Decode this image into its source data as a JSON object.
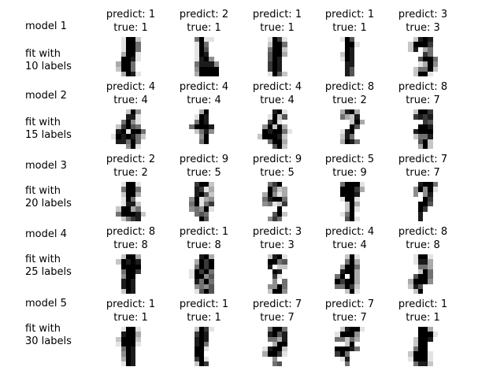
{
  "rows": [
    {
      "model_label": "model 1",
      "fit_line1": "fit with",
      "fit_line2": "10 labels",
      "panels": [
        {
          "predict": "predict: 1",
          "true": "true: 1",
          "pixels": [
            "00199200",
            "00199500",
            "00199500",
            "00399100",
            "00998100",
            "03995000",
            "02995000",
            "00398100"
          ]
        },
        {
          "predict": "predict: 2",
          "true": "true: 1",
          "pixels": [
            "00591100",
            "00195000",
            "00196000",
            "00198000",
            "00189400",
            "00588840",
            "00499990",
            "00399990"
          ]
        },
        {
          "predict": "predict: 1",
          "true": "true: 1",
          "pixels": [
            "00197100",
            "00299500",
            "00599200",
            "00699300",
            "00698000",
            "00798000",
            "00798000",
            "00196200"
          ]
        },
        {
          "predict": "predict: 1",
          "true": "true: 1",
          "pixels": [
            "00196000",
            "00099100",
            "00098000",
            "00298000",
            "00198000",
            "00088000",
            "00086000",
            "00086000"
          ]
        },
        {
          "predict": "predict: 3",
          "true": "true: 3",
          "pixels": [
            "00289800",
            "02999700",
            "02803500",
            "00007500",
            "00069950",
            "00013940",
            "00255920",
            "00299100"
          ]
        }
      ]
    },
    {
      "model_label": "model 2",
      "fit_line1": "fit with",
      "fit_line2": "15 labels",
      "panels": [
        {
          "predict": "predict: 4",
          "true": "true: 4",
          "pixels": [
            "00029400",
            "00088100",
            "00594100",
            "02796500",
            "08919950",
            "19898520",
            "08859500",
            "00049100"
          ]
        },
        {
          "predict": "predict: 4",
          "true": "true: 4",
          "pixels": [
            "00039000",
            "00198000",
            "00598000",
            "05999800",
            "00258400",
            "00049000",
            "00059000",
            "00000000"
          ]
        },
        {
          "predict": "predict: 4",
          "true": "true: 4",
          "pixels": [
            "00089100",
            "00192600",
            "00791000",
            "04929300",
            "09899510",
            "29998200",
            "00599300",
            "00069200"
          ]
        },
        {
          "predict": "predict: 8",
          "true": "true: 2",
          "pixels": [
            "00389300",
            "00532800",
            "00002930",
            "00009600",
            "00189000",
            "00285000",
            "00398500",
            "00000000"
          ]
        },
        {
          "predict": "predict: 8",
          "true": "true: 7",
          "pixels": [
            "00299700",
            "00787800",
            "00007600",
            "00099800",
            "00899900",
            "00255800",
            "00069200",
            "00039200"
          ]
        }
      ]
    },
    {
      "model_label": "model 3",
      "fit_line1": "fit with",
      "fit_line2": "20 labels",
      "panels": [
        {
          "predict": "predict: 2",
          "true": "true: 2",
          "pixels": [
            "00199100",
            "00599500",
            "00299300",
            "00195000",
            "00188200",
            "02993500",
            "05999820",
            "00257800"
          ]
        },
        {
          "predict": "predict: 9",
          "true": "true: 5",
          "pixels": [
            "00799200",
            "00871300",
            "00896200",
            "04913400",
            "05915700",
            "04549100",
            "00565000",
            "00096000"
          ]
        },
        {
          "predict": "predict: 9",
          "true": "true: 5",
          "pixels": [
            "00579000",
            "00952300",
            "03941300",
            "05899500",
            "04512700",
            "00009000",
            "00069200",
            "00475000"
          ]
        },
        {
          "predict": "predict: 5",
          "true": "true: 9",
          "pixels": [
            "00599910",
            "00999730",
            "00999800",
            "00199100",
            "00029300",
            "00029100",
            "00159000",
            "00069100"
          ]
        },
        {
          "predict": "predict: 7",
          "true": "true: 7",
          "pixels": [
            "00089950",
            "00494910",
            "00404800",
            "00009700",
            "00099600",
            "00097000",
            "00080000",
            "00080000"
          ]
        }
      ]
    },
    {
      "model_label": "model 4",
      "fit_line1": "fit with",
      "fit_line2": "25 labels",
      "panels": [
        {
          "predict": "predict: 8",
          "true": "true: 8",
          "pixels": [
            "00299300",
            "02989800",
            "00999900",
            "00599700",
            "00499000",
            "00898000",
            "00898000",
            "00298000"
          ]
        },
        {
          "predict": "predict: 1",
          "true": "true: 8",
          "pixels": [
            "00089300",
            "00397900",
            "00597900",
            "01979500",
            "01994600",
            "00859500",
            "00454600",
            "00169600"
          ]
        },
        {
          "predict": "predict: 3",
          "true": "true: 3",
          "pixels": [
            "00289100",
            "00995600",
            "00802200",
            "00098000",
            "00071000",
            "00040500",
            "00449500",
            "00299400"
          ]
        },
        {
          "predict": "predict: 4",
          "true": "true: 4",
          "pixels": [
            "00029100",
            "00059300",
            "00399500",
            "00899300",
            "05909300",
            "09799300",
            "05597200",
            "00029100"
          ]
        },
        {
          "predict": "predict: 8",
          "true": "true: 8",
          "pixels": [
            "00199100",
            "00188300",
            "00055300",
            "00029500",
            "00699500",
            "03999400",
            "02860000",
            "00290000"
          ]
        }
      ]
    },
    {
      "model_label": "model 5",
      "fit_line1": "fit with",
      "fit_line2": "30 labels",
      "panels": [
        {
          "predict": "predict: 1",
          "true": "true: 1",
          "pixels": [
            "00199100",
            "00899300",
            "02999200",
            "01999100",
            "00598000",
            "00498000",
            "00398000",
            "00198000"
          ]
        },
        {
          "predict": "predict: 1",
          "true": "true: 1",
          "pixels": [
            "00297100",
            "00798000",
            "00898000",
            "00895000",
            "00991000",
            "00990000",
            "00791000",
            "00297000"
          ]
        },
        {
          "predict": "predict: 7",
          "true": "true: 7",
          "pixels": [
            "00599500",
            "00896800",
            "00553800",
            "00039900",
            "01899200",
            "03997100",
            "00040000",
            "00056000"
          ]
        },
        {
          "predict": "predict: 7",
          "true": "true: 7",
          "pixels": [
            "00289910",
            "01999400",
            "05525300",
            "00029000",
            "09998500",
            "07950000",
            "00180000",
            "00050000"
          ]
        },
        {
          "predict": "predict: 1",
          "true": "true: 1",
          "pixels": [
            "00099300",
            "00099910",
            "00299800",
            "00299000",
            "00599000",
            "02999100",
            "01999100",
            "00588200"
          ]
        }
      ]
    }
  ]
}
